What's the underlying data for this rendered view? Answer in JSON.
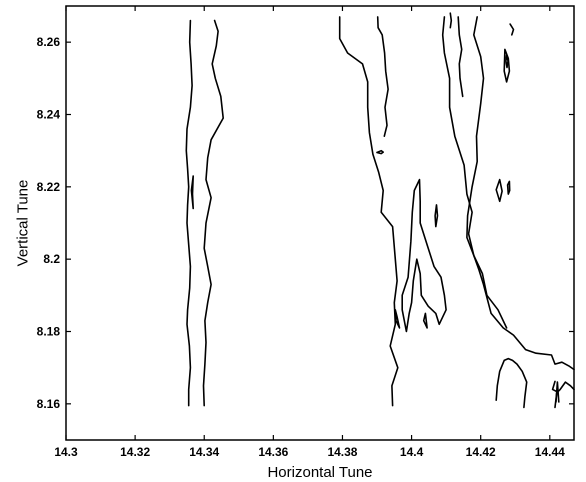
{
  "chart_data": {
    "type": "contour",
    "xlabel": "Horizontal Tune",
    "ylabel": "Vertical Tune",
    "xlim": [
      14.3,
      14.447
    ],
    "ylim": [
      8.15,
      8.27
    ],
    "grid": false,
    "xticks": [
      {
        "value": 14.3,
        "label": "14.3"
      },
      {
        "value": 14.32,
        "label": "14.32"
      },
      {
        "value": 14.34,
        "label": "14.34"
      },
      {
        "value": 14.36,
        "label": "14.36"
      },
      {
        "value": 14.38,
        "label": "14.38"
      },
      {
        "value": 14.4,
        "label": "14.4"
      },
      {
        "value": 14.42,
        "label": "14.42"
      },
      {
        "value": 14.44,
        "label": "14.44"
      }
    ],
    "yticks": [
      {
        "value": 8.16,
        "label": "8.16"
      },
      {
        "value": 8.18,
        "label": "8.18"
      },
      {
        "value": 8.2,
        "label": "8.2"
      },
      {
        "value": 8.22,
        "label": "8.22"
      },
      {
        "value": 8.24,
        "label": "8.24"
      },
      {
        "value": 8.26,
        "label": "8.26"
      }
    ],
    "contours": [
      {
        "points": [
          [
            14.3355,
            8.1595
          ],
          [
            14.3355,
            8.164
          ],
          [
            14.336,
            8.17
          ],
          [
            14.3357,
            8.176
          ],
          [
            14.335,
            8.182
          ],
          [
            14.3352,
            8.186
          ],
          [
            14.3358,
            8.192
          ],
          [
            14.336,
            8.198
          ],
          [
            14.3355,
            8.204
          ],
          [
            14.335,
            8.21
          ],
          [
            14.3352,
            8.215
          ],
          [
            14.3355,
            8.22
          ],
          [
            14.3352,
            8.225
          ],
          [
            14.3348,
            8.23
          ],
          [
            14.335,
            8.236
          ],
          [
            14.336,
            8.242
          ],
          [
            14.3365,
            8.248
          ],
          [
            14.3362,
            8.254
          ],
          [
            14.3358,
            8.26
          ],
          [
            14.336,
            8.266
          ]
        ]
      },
      {
        "points": [
          [
            14.3368,
            8.214
          ],
          [
            14.3366,
            8.218
          ],
          [
            14.3368,
            8.223
          ],
          [
            14.3363,
            8.219
          ],
          [
            14.3368,
            8.214
          ]
        ]
      },
      {
        "points": [
          [
            14.34,
            8.1595
          ],
          [
            14.3398,
            8.165
          ],
          [
            14.3402,
            8.171
          ],
          [
            14.3405,
            8.177
          ],
          [
            14.3402,
            8.183
          ],
          [
            14.341,
            8.188
          ],
          [
            14.342,
            8.193
          ],
          [
            14.341,
            8.198
          ],
          [
            14.34,
            8.203
          ],
          [
            14.3405,
            8.21
          ],
          [
            14.342,
            8.217
          ],
          [
            14.3405,
            8.222
          ],
          [
            14.341,
            8.228
          ],
          [
            14.342,
            8.233
          ],
          [
            14.3455,
            8.239
          ],
          [
            14.3448,
            8.245
          ],
          [
            14.3432,
            8.25
          ],
          [
            14.3423,
            8.254
          ],
          [
            14.3435,
            8.259
          ],
          [
            14.344,
            8.263
          ],
          [
            14.343,
            8.266
          ]
        ]
      },
      {
        "points": [
          [
            14.3792,
            8.267
          ],
          [
            14.3792,
            8.261
          ],
          [
            14.3815,
            8.257
          ],
          [
            14.3858,
            8.254
          ],
          [
            14.3873,
            8.249
          ],
          [
            14.3873,
            8.242
          ],
          [
            14.3878,
            8.235
          ],
          [
            14.3888,
            8.229
          ],
          [
            14.3905,
            8.224
          ],
          [
            14.3918,
            8.219
          ],
          [
            14.3912,
            8.213
          ],
          [
            14.3945,
            8.209
          ],
          [
            14.3952,
            8.201
          ],
          [
            14.3958,
            8.194
          ],
          [
            14.395,
            8.188
          ],
          [
            14.3953,
            8.182
          ],
          [
            14.3938,
            8.176
          ],
          [
            14.396,
            8.17
          ],
          [
            14.3943,
            8.165
          ],
          [
            14.3945,
            8.1595
          ]
        ]
      },
      {
        "points": [
          [
            14.3902,
            8.267
          ],
          [
            14.3903,
            8.264
          ],
          [
            14.3915,
            8.262
          ],
          [
            14.3922,
            8.257
          ],
          [
            14.3925,
            8.252
          ],
          [
            14.3932,
            8.247
          ],
          [
            14.3923,
            8.242
          ],
          [
            14.3929,
            8.237
          ],
          [
            14.3921,
            8.234
          ]
        ]
      },
      {
        "points": [
          [
            14.39,
            8.2295
          ],
          [
            14.3912,
            8.2292
          ],
          [
            14.3918,
            8.2296
          ],
          [
            14.3912,
            8.23
          ],
          [
            14.39,
            8.2295
          ]
        ]
      },
      {
        "points": [
          [
            14.3973,
            8.186
          ],
          [
            14.3973,
            8.19
          ],
          [
            14.399,
            8.195
          ],
          [
            14.3998,
            8.205
          ],
          [
            14.4002,
            8.213
          ],
          [
            14.4008,
            8.219
          ],
          [
            14.4023,
            8.222
          ],
          [
            14.4025,
            8.216
          ],
          [
            14.4025,
            8.21
          ],
          [
            14.4045,
            8.204
          ],
          [
            14.4065,
            8.198
          ],
          [
            14.4085,
            8.195
          ],
          [
            14.4095,
            8.19
          ],
          [
            14.41,
            8.186
          ],
          [
            14.408,
            8.182
          ],
          [
            14.407,
            8.185
          ],
          [
            14.4048,
            8.187
          ],
          [
            14.4028,
            8.19
          ],
          [
            14.4025,
            8.196
          ],
          [
            14.4015,
            8.2
          ],
          [
            14.4005,
            8.194
          ],
          [
            14.4,
            8.188
          ],
          [
            14.3993,
            8.185
          ],
          [
            14.3985,
            8.18
          ],
          [
            14.3973,
            8.186
          ]
        ]
      },
      {
        "points": [
          [
            14.3953,
            8.186
          ],
          [
            14.3955,
            8.183
          ],
          [
            14.3965,
            8.181
          ],
          [
            14.3958,
            8.184
          ],
          [
            14.3953,
            8.186
          ]
        ]
      },
      {
        "points": [
          [
            14.4035,
            8.183
          ],
          [
            14.4045,
            8.181
          ],
          [
            14.404,
            8.185
          ],
          [
            14.4035,
            8.183
          ]
        ]
      },
      {
        "points": [
          [
            14.4095,
            8.267
          ],
          [
            14.409,
            8.262
          ],
          [
            14.4095,
            8.257
          ],
          [
            14.411,
            8.25
          ],
          [
            14.411,
            8.242
          ],
          [
            14.4125,
            8.234
          ],
          [
            14.4152,
            8.226
          ],
          [
            14.416,
            8.218
          ],
          [
            14.4175,
            8.213
          ],
          [
            14.4165,
            8.207
          ],
          [
            14.418,
            8.201
          ],
          [
            14.4195,
            8.197
          ],
          [
            14.4208,
            8.193
          ],
          [
            14.423,
            8.185
          ],
          [
            14.4265,
            8.181
          ],
          [
            14.4295,
            8.179
          ],
          [
            14.433,
            8.175
          ],
          [
            14.436,
            8.174
          ],
          [
            14.4405,
            8.1735
          ],
          [
            14.4415,
            8.171
          ],
          [
            14.4435,
            8.1715
          ],
          [
            14.4455,
            8.1705
          ],
          [
            14.447,
            8.1695
          ]
        ]
      },
      {
        "points": [
          [
            14.419,
            8.267
          ],
          [
            14.418,
            8.262
          ],
          [
            14.42,
            8.256
          ],
          [
            14.4208,
            8.25
          ],
          [
            14.42,
            8.243
          ],
          [
            14.4188,
            8.234
          ],
          [
            14.419,
            8.227
          ],
          [
            14.4175,
            8.22
          ],
          [
            14.4162,
            8.212
          ],
          [
            14.416,
            8.206
          ],
          [
            14.418,
            8.201
          ],
          [
            14.4205,
            8.196
          ],
          [
            14.4218,
            8.19
          ],
          [
            14.425,
            8.186
          ],
          [
            14.4275,
            8.181
          ]
        ]
      },
      {
        "points": [
          [
            14.4135,
            8.267
          ],
          [
            14.4138,
            8.262
          ],
          [
            14.4145,
            8.258
          ],
          [
            14.4138,
            8.254
          ],
          [
            14.414,
            8.25
          ],
          [
            14.4148,
            8.245
          ]
        ]
      },
      {
        "points": [
          [
            14.4068,
            8.212
          ],
          [
            14.4072,
            8.215
          ],
          [
            14.4075,
            8.212
          ],
          [
            14.407,
            8.209
          ],
          [
            14.4068,
            8.212
          ]
        ]
      },
      {
        "points": [
          [
            14.4112,
            8.268
          ],
          [
            14.4115,
            8.266
          ],
          [
            14.4112,
            8.264
          ]
        ]
      },
      {
        "points": [
          [
            14.427,
            8.258
          ],
          [
            14.428,
            8.2555
          ],
          [
            14.4283,
            8.252
          ],
          [
            14.4275,
            8.249
          ],
          [
            14.4268,
            8.252
          ],
          [
            14.427,
            8.258
          ]
        ]
      },
      {
        "points": [
          [
            14.4275,
            8.2565
          ],
          [
            14.4279,
            8.2548
          ],
          [
            14.4276,
            8.253
          ],
          [
            14.4273,
            8.2548
          ],
          [
            14.4275,
            8.2565
          ]
        ]
      },
      {
        "points": [
          [
            14.4245,
            8.2192
          ],
          [
            14.4255,
            8.222
          ],
          [
            14.4262,
            8.2188
          ],
          [
            14.4255,
            8.216
          ],
          [
            14.4245,
            8.2192
          ]
        ]
      },
      {
        "points": [
          [
            14.4278,
            8.2205
          ],
          [
            14.4283,
            8.2215
          ],
          [
            14.4284,
            8.219
          ],
          [
            14.428,
            8.218
          ],
          [
            14.4278,
            8.2205
          ]
        ]
      },
      {
        "points": [
          [
            14.4285,
            8.265
          ],
          [
            14.4295,
            8.2635
          ],
          [
            14.429,
            8.262
          ]
        ]
      },
      {
        "points": [
          [
            14.4325,
            8.159
          ],
          [
            14.4328,
            8.162
          ],
          [
            14.4333,
            8.166
          ],
          [
            14.432,
            8.169
          ],
          [
            14.4305,
            8.171
          ],
          [
            14.4292,
            8.172
          ],
          [
            14.428,
            8.1725
          ],
          [
            14.4268,
            8.172
          ],
          [
            14.4255,
            8.169
          ],
          [
            14.4248,
            8.165
          ],
          [
            14.4245,
            8.161
          ]
        ]
      },
      {
        "points": [
          [
            14.4415,
            8.159
          ],
          [
            14.442,
            8.163
          ],
          [
            14.443,
            8.164
          ],
          [
            14.4445,
            8.166
          ],
          [
            14.446,
            8.165
          ],
          [
            14.447,
            8.164
          ]
        ]
      },
      {
        "points": [
          [
            14.4418,
            8.1605
          ],
          [
            14.4422,
            8.166
          ],
          [
            14.4426,
            8.1605
          ]
        ]
      },
      {
        "points": [
          [
            14.4418,
            8.1635
          ],
          [
            14.4408,
            8.164
          ],
          [
            14.4415,
            8.1662
          ]
        ]
      }
    ]
  }
}
